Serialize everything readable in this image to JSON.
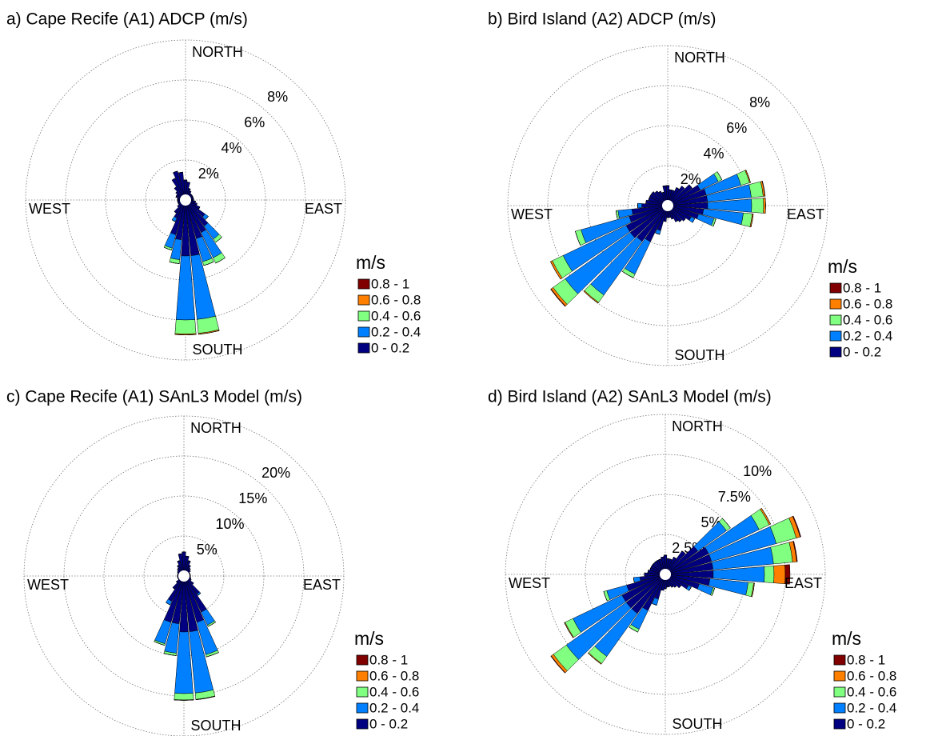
{
  "chart_data": [
    {
      "type": "rose",
      "title": "a) Cape Recife (A1) ADCP (m/s)",
      "legend_title": "m/s",
      "direction_labels": [
        "NORTH",
        "EAST",
        "SOUTH",
        "WEST"
      ],
      "rlim": [
        0,
        8
      ],
      "rticks": [
        {
          "value": 2,
          "label": "2%"
        },
        {
          "value": 4,
          "label": "4%"
        },
        {
          "value": 6,
          "label": "6%"
        },
        {
          "value": 8,
          "label": "8%"
        }
      ],
      "x": [
        0,
        10,
        20,
        30,
        40,
        50,
        60,
        70,
        80,
        90,
        100,
        110,
        120,
        130,
        140,
        150,
        160,
        170,
        180,
        190,
        200,
        210,
        220,
        230,
        240,
        250,
        260,
        270,
        280,
        290,
        300,
        310,
        320,
        330,
        340,
        350
      ],
      "series": [
        {
          "name": "0 - 0.2",
          "color": "#000080",
          "values": [
            1.0,
            0.9,
            0.6,
            0.5,
            0.4,
            0.4,
            0.4,
            0.4,
            0.4,
            0.4,
            0.5,
            0.6,
            0.8,
            1.2,
            1.6,
            1.8,
            2.0,
            2.8,
            2.8,
            2.0,
            1.8,
            1.0,
            0.8,
            0.5,
            0.4,
            0.4,
            0.4,
            0.4,
            0.4,
            0.5,
            0.5,
            0.6,
            0.8,
            1.2,
            1.5,
            1.4
          ]
        },
        {
          "name": "0.2 - 0.4",
          "color": "#0080ff",
          "values": [
            0,
            0,
            0,
            0,
            0,
            0,
            0,
            0,
            0,
            0,
            0,
            0,
            0,
            0.2,
            0.8,
            1.4,
            1.2,
            3.2,
            3.2,
            1.0,
            0.7,
            0.2,
            0,
            0,
            0,
            0,
            0,
            0,
            0,
            0,
            0,
            0,
            0,
            0,
            0,
            0
          ]
        },
        {
          "name": "0.4 - 0.6",
          "color": "#80ff80",
          "values": [
            0,
            0,
            0,
            0,
            0,
            0,
            0,
            0,
            0,
            0,
            0,
            0,
            0,
            0,
            0.2,
            0.3,
            0.2,
            0.7,
            0.7,
            0.2,
            0.1,
            0,
            0,
            0,
            0,
            0,
            0,
            0,
            0,
            0,
            0,
            0,
            0,
            0,
            0,
            0
          ]
        },
        {
          "name": "0.6 - 0.8",
          "color": "#ff8000",
          "values": [
            0,
            0,
            0,
            0,
            0,
            0,
            0,
            0,
            0,
            0,
            0,
            0,
            0,
            0,
            0,
            0,
            0,
            0.05,
            0.05,
            0,
            0,
            0,
            0,
            0,
            0,
            0,
            0,
            0,
            0,
            0,
            0,
            0,
            0,
            0,
            0,
            0
          ]
        },
        {
          "name": "0.8 - 1",
          "color": "#800000",
          "values": [
            0,
            0,
            0,
            0,
            0,
            0,
            0,
            0,
            0,
            0,
            0,
            0,
            0,
            0,
            0,
            0,
            0,
            0,
            0,
            0,
            0,
            0,
            0,
            0,
            0,
            0,
            0,
            0,
            0,
            0,
            0,
            0,
            0,
            0,
            0,
            0
          ]
        }
      ]
    },
    {
      "type": "rose",
      "title": "b) Bird Island (A2) ADCP (m/s)",
      "legend_title": "m/s",
      "direction_labels": [
        "NORTH",
        "EAST",
        "SOUTH",
        "WEST"
      ],
      "rlim": [
        0,
        8
      ],
      "rticks": [
        {
          "value": 2,
          "label": "2%"
        },
        {
          "value": 4,
          "label": "4%"
        },
        {
          "value": 6,
          "label": "6%"
        },
        {
          "value": 8,
          "label": "8%"
        }
      ],
      "x": [
        0,
        10,
        20,
        30,
        40,
        50,
        60,
        70,
        80,
        90,
        100,
        110,
        120,
        130,
        140,
        150,
        160,
        170,
        180,
        190,
        200,
        210,
        220,
        230,
        240,
        250,
        260,
        270,
        280,
        290,
        300,
        310,
        320,
        330,
        340,
        350
      ],
      "series": [
        {
          "name": "0 - 0.2",
          "color": "#000080",
          "values": [
            1.0,
            0.8,
            0.8,
            1.0,
            1.2,
            1.5,
            1.8,
            2.0,
            2.0,
            2.0,
            1.8,
            1.6,
            1.3,
            1.1,
            1.0,
            0.9,
            0.7,
            0.6,
            0.6,
            0.8,
            1.3,
            2.0,
            2.2,
            2.3,
            2.3,
            2.0,
            1.8,
            1.3,
            1.1,
            1.0,
            1.0,
            1.0,
            0.9,
            0.8,
            0.7,
            1.0
          ]
        },
        {
          "name": "0.2 - 0.4",
          "color": "#0080ff",
          "values": [
            0,
            0,
            0,
            0,
            0,
            0,
            1.0,
            1.8,
            2.2,
            2.2,
            2.0,
            0.8,
            0.2,
            0,
            0,
            0,
            0,
            0,
            0,
            0,
            0.2,
            1.8,
            3.3,
            4.0,
            3.5,
            2.5,
            0.7,
            0.2,
            0,
            0,
            0,
            0,
            0,
            0,
            0,
            0
          ]
        },
        {
          "name": "0.4 - 0.6",
          "color": "#80ff80",
          "values": [
            0,
            0,
            0,
            0,
            0,
            0,
            0.2,
            0.45,
            0.6,
            0.6,
            0.45,
            0.1,
            0,
            0,
            0,
            0,
            0,
            0,
            0,
            0,
            0,
            0.2,
            0.45,
            0.75,
            0.6,
            0.3,
            0.1,
            0,
            0,
            0,
            0,
            0,
            0,
            0,
            0,
            0
          ]
        },
        {
          "name": "0.6 - 0.8",
          "color": "#ff8000",
          "values": [
            0,
            0,
            0,
            0,
            0,
            0,
            0,
            0.05,
            0.08,
            0.1,
            0.05,
            0,
            0,
            0,
            0,
            0,
            0,
            0,
            0,
            0,
            0,
            0,
            0.05,
            0.12,
            0.1,
            0,
            0,
            0,
            0,
            0,
            0,
            0,
            0,
            0,
            0,
            0
          ]
        },
        {
          "name": "0.8 - 1",
          "color": "#800000",
          "values": [
            0,
            0,
            0,
            0,
            0,
            0,
            0,
            0,
            0.02,
            0,
            0,
            0,
            0,
            0,
            0,
            0,
            0,
            0,
            0,
            0,
            0,
            0,
            0,
            0.03,
            0,
            0,
            0,
            0,
            0,
            0,
            0,
            0,
            0,
            0,
            0,
            0
          ]
        }
      ]
    },
    {
      "type": "rose",
      "title": "c) Cape Recife (A1) SAnL3 Model (m/s)",
      "legend_title": "m/s",
      "direction_labels": [
        "NORTH",
        "EAST",
        "SOUTH",
        "WEST"
      ],
      "rlim": [
        0,
        20
      ],
      "rticks": [
        {
          "value": 5,
          "label": "5%"
        },
        {
          "value": 10,
          "label": "10%"
        },
        {
          "value": 15,
          "label": "15%"
        },
        {
          "value": 20,
          "label": "20%"
        }
      ],
      "x": [
        0,
        10,
        20,
        30,
        40,
        50,
        60,
        70,
        80,
        90,
        100,
        110,
        120,
        130,
        140,
        150,
        160,
        170,
        180,
        190,
        200,
        210,
        220,
        230,
        240,
        250,
        260,
        270,
        280,
        290,
        300,
        310,
        320,
        330,
        340,
        350
      ],
      "series": [
        {
          "name": "0 - 0.2",
          "color": "#000080",
          "values": [
            3,
            2.5,
            2,
            1.5,
            1.2,
            1,
            0.8,
            0.8,
            0.8,
            0.8,
            0.8,
            0.9,
            1,
            1.5,
            2.8,
            5,
            6,
            7,
            7,
            6,
            6,
            3.5,
            2,
            1.2,
            0.8,
            0.8,
            0.8,
            0.8,
            0.8,
            0.8,
            0.9,
            1,
            1.2,
            1.5,
            2,
            2.8
          ]
        },
        {
          "name": "0.2 - 0.4",
          "color": "#0080ff",
          "values": [
            0,
            0,
            0,
            0,
            0,
            0,
            0,
            0,
            0,
            0,
            0,
            0,
            0,
            0,
            0.2,
            1.8,
            4.2,
            7.7,
            7.7,
            3.7,
            2.8,
            0.5,
            0,
            0,
            0,
            0,
            0,
            0,
            0,
            0,
            0,
            0,
            0,
            0,
            0,
            0
          ]
        },
        {
          "name": "0.4 - 0.6",
          "color": "#80ff80",
          "values": [
            0,
            0,
            0,
            0,
            0,
            0,
            0,
            0,
            0,
            0,
            0,
            0,
            0,
            0,
            0,
            0.2,
            0.3,
            0.8,
            0.8,
            0.3,
            0.2,
            0,
            0,
            0,
            0,
            0,
            0,
            0,
            0,
            0,
            0,
            0,
            0,
            0,
            0,
            0
          ]
        },
        {
          "name": "0.6 - 0.8",
          "color": "#ff8000",
          "values": [
            0,
            0,
            0,
            0,
            0,
            0,
            0,
            0,
            0,
            0,
            0,
            0,
            0,
            0,
            0,
            0,
            0,
            0.05,
            0.05,
            0,
            0,
            0,
            0,
            0,
            0,
            0,
            0,
            0,
            0,
            0,
            0,
            0,
            0,
            0,
            0,
            0
          ]
        },
        {
          "name": "0.8 - 1",
          "color": "#800000",
          "values": [
            0,
            0,
            0,
            0,
            0,
            0,
            0,
            0,
            0,
            0,
            0,
            0,
            0,
            0,
            0,
            0,
            0,
            0,
            0,
            0,
            0,
            0,
            0,
            0,
            0,
            0,
            0,
            0,
            0,
            0,
            0,
            0,
            0,
            0,
            0,
            0
          ]
        }
      ]
    },
    {
      "type": "rose",
      "title": "d) Bird Island (A2) SAnL3 Model (m/s)",
      "legend_title": "m/s",
      "direction_labels": [
        "NORTH",
        "EAST",
        "SOUTH",
        "WEST"
      ],
      "rlim": [
        0,
        10
      ],
      "rticks": [
        {
          "value": 2.5,
          "label": "2.5%"
        },
        {
          "value": 5,
          "label": "5%"
        },
        {
          "value": 7.5,
          "label": "7.5%"
        },
        {
          "value": 10,
          "label": "10%"
        }
      ],
      "x": [
        0,
        10,
        20,
        30,
        40,
        50,
        60,
        70,
        80,
        90,
        100,
        110,
        120,
        130,
        140,
        150,
        160,
        170,
        180,
        190,
        200,
        210,
        220,
        230,
        240,
        250,
        260,
        270,
        280,
        290,
        300,
        310,
        320,
        330,
        340,
        350
      ],
      "series": [
        {
          "name": "0 - 0.2",
          "color": "#000080",
          "values": [
            1.2,
            1.0,
            1.0,
            1.2,
            1.8,
            2.5,
            3,
            3,
            3,
            3,
            2.8,
            2.2,
            1.6,
            1.2,
            1.0,
            0.9,
            0.8,
            0.8,
            0.9,
            1.0,
            1.6,
            2.5,
            3,
            3,
            3,
            2.5,
            1.6,
            1.3,
            1.1,
            1,
            1,
            1,
            1,
            1,
            1,
            1.1
          ]
        },
        {
          "name": "0.2 - 0.4",
          "color": "#0080ff",
          "values": [
            0,
            0,
            0,
            0,
            0,
            2.2,
            3.5,
            4.2,
            3.8,
            3.2,
            2.4,
            0.9,
            0.2,
            0,
            0,
            0,
            0,
            0,
            0,
            0,
            0.4,
            1.3,
            3.3,
            4.6,
            3.4,
            1.3,
            0.4,
            0,
            0,
            0,
            0,
            0,
            0,
            0,
            0,
            0
          ]
        },
        {
          "name": "0.4 - 0.6",
          "color": "#80ff80",
          "values": [
            0,
            0,
            0,
            0,
            0,
            0.3,
            0.7,
            1.3,
            1.2,
            0.6,
            0.35,
            0.1,
            0,
            0,
            0,
            0,
            0,
            0,
            0,
            0,
            0,
            0.2,
            0.55,
            1.0,
            0.55,
            0.2,
            0,
            0,
            0,
            0,
            0,
            0,
            0,
            0,
            0,
            0
          ]
        },
        {
          "name": "0.6 - 0.8",
          "color": "#ff8000",
          "values": [
            0,
            0,
            0,
            0,
            0,
            0,
            0.1,
            0.25,
            0.25,
            0.7,
            0.05,
            0,
            0,
            0,
            0,
            0,
            0,
            0,
            0,
            0,
            0,
            0,
            0.05,
            0.17,
            0.05,
            0,
            0,
            0,
            0,
            0,
            0,
            0,
            0,
            0,
            0,
            0
          ]
        },
        {
          "name": "0.8 - 1",
          "color": "#800000",
          "values": [
            0,
            0,
            0,
            0,
            0,
            0,
            0,
            0.05,
            0.05,
            0.3,
            0,
            0,
            0,
            0,
            0,
            0,
            0,
            0,
            0,
            0,
            0,
            0,
            0,
            0.03,
            0,
            0,
            0,
            0,
            0,
            0,
            0,
            0,
            0,
            0,
            0,
            0
          ]
        }
      ]
    }
  ]
}
